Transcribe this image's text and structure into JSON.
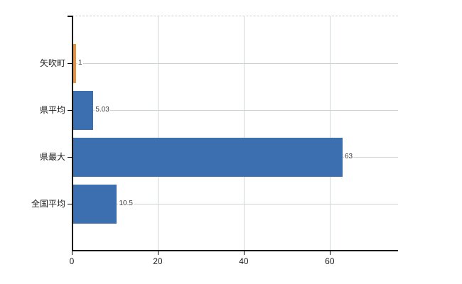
{
  "chart_data": {
    "type": "bar",
    "orientation": "horizontal",
    "title": "",
    "xlabel": "",
    "ylabel": "",
    "categories": [
      "矢吹町",
      "県平均",
      "県最大",
      "全国平均"
    ],
    "values": [
      1,
      5.03,
      63,
      10.5
    ],
    "value_labels": [
      "1",
      "5.03",
      "63",
      "10.5"
    ],
    "bar_colors": [
      "#E8913C",
      "#3B6FB0",
      "#3B6FB0",
      "#3B6FB0"
    ],
    "x_tick_values": [
      0,
      20,
      40,
      60
    ],
    "x_tick_labels": [
      "0",
      "20",
      "40",
      "60"
    ],
    "xlim": [
      0,
      75.9
    ],
    "grid": true,
    "legend_position": "none"
  },
  "colors": {
    "bar_orange": "#E8913C",
    "bar_blue": "#3B6FB0",
    "gridline": "#ccd4cd",
    "axis": "#000000",
    "value_text": "#3b3b3b",
    "label_text": "#1a1a1a",
    "background": "#ffffff"
  }
}
